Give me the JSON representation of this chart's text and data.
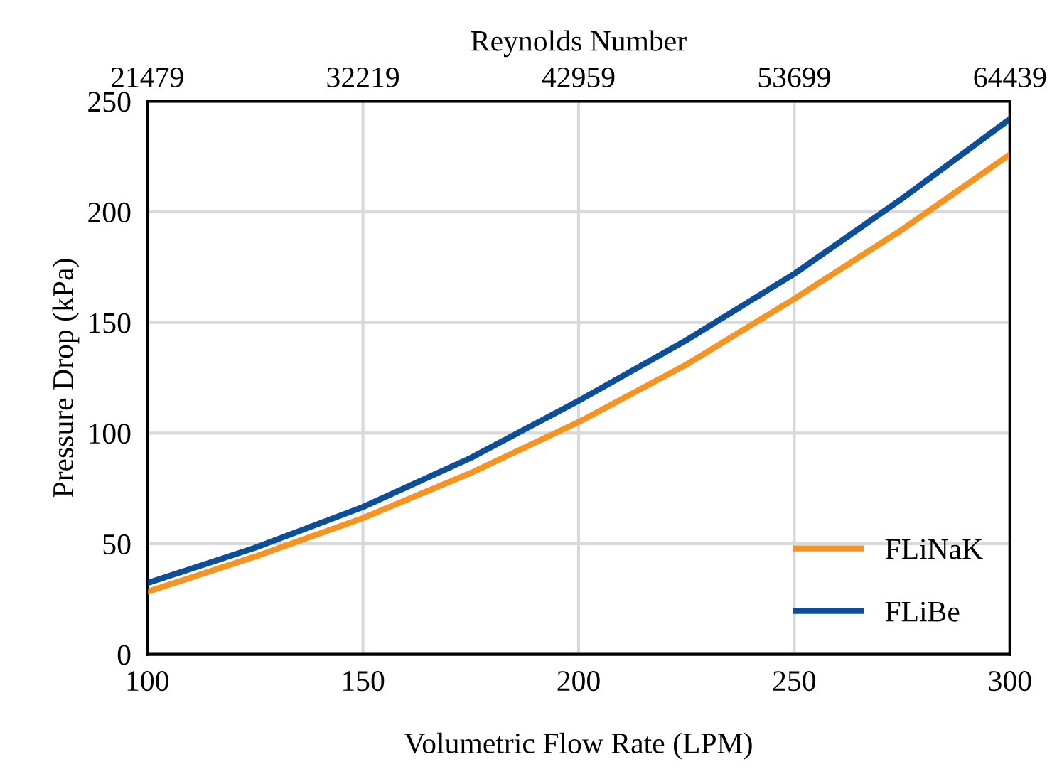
{
  "chart_data": {
    "type": "line",
    "x2label": "Reynolds Number",
    "xlabel": "Volumetric Flow Rate (LPM)",
    "ylabel": "Pressure Drop (kPa)",
    "x": [
      100,
      125,
      150,
      175,
      200,
      225,
      250,
      275,
      300
    ],
    "series": [
      {
        "name": "FLiNaK",
        "color": "#f7931e",
        "values": [
          28.3,
          44.2,
          61.6,
          82,
          105,
          131,
          160.7,
          192,
          226
        ]
      },
      {
        "name": "FLiBe",
        "color": "#0b4f9c",
        "values": [
          32.2,
          48.2,
          66.6,
          88.8,
          114.6,
          142,
          172,
          206,
          242
        ]
      }
    ],
    "xlim": [
      100,
      300
    ],
    "xticks": [
      100,
      150,
      200,
      250,
      300
    ],
    "ylim": [
      0,
      250
    ],
    "yticks": [
      0,
      50,
      100,
      150,
      200,
      250
    ],
    "x2lim": [
      21479,
      64439
    ],
    "x2ticks": [
      21479,
      32219,
      42959,
      53699,
      64439
    ],
    "grid": true,
    "legend": "bottom right",
    "marker": "none",
    "line_style": "solid"
  }
}
